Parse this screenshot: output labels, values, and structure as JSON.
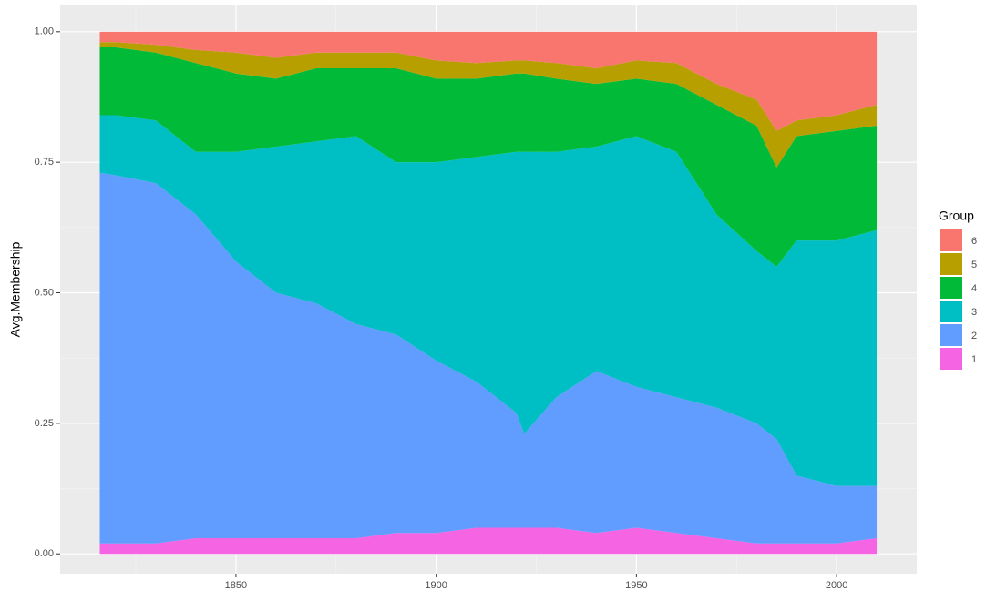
{
  "chart_data": {
    "type": "stacked_area",
    "y_label": "Avg.Membership",
    "legend_title": "Group",
    "legend": "right",
    "grid": true,
    "x": [
      1816,
      1820,
      1830,
      1840,
      1850,
      1860,
      1870,
      1880,
      1890,
      1900,
      1910,
      1920,
      1922,
      1930,
      1940,
      1950,
      1960,
      1970,
      1980,
      1985,
      1990,
      2000,
      2010
    ],
    "series": [
      {
        "name": "1",
        "color": "#F564E3",
        "values": [
          0.02,
          0.02,
          0.02,
          0.03,
          0.03,
          0.03,
          0.03,
          0.03,
          0.04,
          0.04,
          0.05,
          0.05,
          0.05,
          0.05,
          0.04,
          0.05,
          0.04,
          0.03,
          0.02,
          0.02,
          0.02,
          0.02,
          0.03
        ]
      },
      {
        "name": "2",
        "color": "#619CFF",
        "values": [
          0.71,
          0.705,
          0.69,
          0.62,
          0.53,
          0.47,
          0.45,
          0.41,
          0.38,
          0.33,
          0.28,
          0.22,
          0.18,
          0.25,
          0.31,
          0.27,
          0.26,
          0.25,
          0.23,
          0.2,
          0.13,
          0.11,
          0.1
        ]
      },
      {
        "name": "3",
        "color": "#00BFC4",
        "values": [
          0.11,
          0.115,
          0.12,
          0.12,
          0.21,
          0.28,
          0.31,
          0.36,
          0.33,
          0.38,
          0.43,
          0.5,
          0.54,
          0.47,
          0.43,
          0.48,
          0.47,
          0.37,
          0.33,
          0.33,
          0.45,
          0.47,
          0.49
        ]
      },
      {
        "name": "4",
        "color": "#00BA38",
        "values": [
          0.13,
          0.13,
          0.13,
          0.17,
          0.15,
          0.13,
          0.14,
          0.13,
          0.18,
          0.16,
          0.15,
          0.15,
          0.15,
          0.14,
          0.12,
          0.11,
          0.13,
          0.21,
          0.24,
          0.19,
          0.2,
          0.21,
          0.2
        ]
      },
      {
        "name": "5",
        "color": "#B79F00",
        "values": [
          0.01,
          0.01,
          0.015,
          0.025,
          0.04,
          0.04,
          0.03,
          0.03,
          0.03,
          0.035,
          0.03,
          0.025,
          0.025,
          0.03,
          0.03,
          0.035,
          0.04,
          0.04,
          0.05,
          0.07,
          0.03,
          0.03,
          0.04
        ]
      },
      {
        "name": "6",
        "color": "#F8766D",
        "values": [
          0.02,
          0.02,
          0.025,
          0.035,
          0.04,
          0.05,
          0.04,
          0.04,
          0.04,
          0.055,
          0.06,
          0.055,
          0.055,
          0.06,
          0.07,
          0.055,
          0.06,
          0.1,
          0.13,
          0.19,
          0.17,
          0.16,
          0.14
        ]
      }
    ],
    "xlim": [
      1806.1,
      2020
    ],
    "ylim": [
      -0.038,
      1.052
    ],
    "xticks": [
      1850,
      1900,
      1950,
      2000
    ],
    "minor_xticks": [
      1825,
      1875,
      1925,
      1975
    ],
    "yticks": [
      {
        "value": 0,
        "label": "0.00"
      },
      {
        "value": 0.25,
        "label": "0.25"
      },
      {
        "value": 0.5,
        "label": "0.50"
      },
      {
        "value": 0.75,
        "label": "0.75"
      },
      {
        "value": 1,
        "label": "1.00"
      }
    ],
    "minor_yticks": [
      0.125,
      0.375,
      0.625,
      0.875
    ]
  }
}
